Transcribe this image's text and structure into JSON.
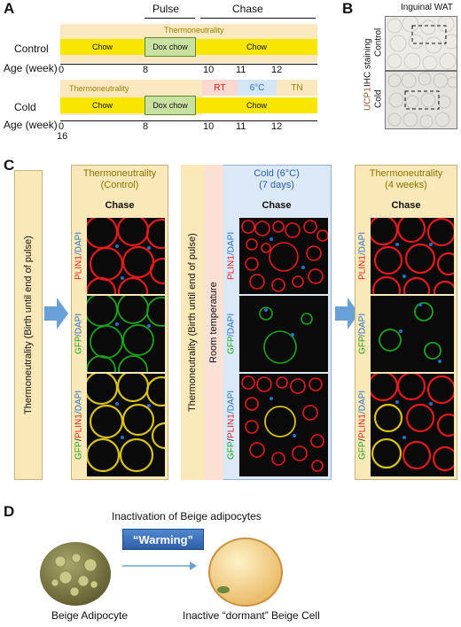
{
  "panel_a": {
    "label": "A",
    "pulse": "Pulse",
    "chase": "Chase",
    "control": {
      "name": "Control",
      "band": "Thermoneutrality",
      "chow1": "Chow",
      "dox": "Dox chow",
      "chow2": "Chow"
    },
    "cold": {
      "name": "Cold",
      "band": "Thermoneutrality",
      "rt": "RT",
      "six": "6°C",
      "tn": "TN",
      "chow1": "Chow",
      "dox": "Dox chow",
      "chow2": "Chow"
    },
    "age_label": "Age (week)",
    "ticks": [
      "0",
      "8",
      "10",
      "11",
      "12"
    ],
    "ticks_under": "16"
  },
  "panel_b": {
    "label": "B",
    "title": "Inguinal WAT",
    "ucp1": "UCP1",
    "ihc": " IHC staining",
    "control": "Control",
    "cold": "Cold"
  },
  "panel_c": {
    "label": "C",
    "side_tn": "Thermoneutrality (Birth until end of pulse)",
    "side_tn2": "Thermoneutrality (Birth until end of pulse)",
    "room": "Room temperature",
    "g1_title1": "Thermoneutrality",
    "g1_title2": "(Control)",
    "g2_title1": "Cold (6°C)",
    "g2_title2": "(7 days)",
    "g3_title1": "Thermoneutrality",
    "g3_title2": "(4 weeks)",
    "chase": "Chase",
    "rows": {
      "plin1": "PLIN1",
      "gfp": "GFP",
      "dapi": "/DAPI",
      "slash": "/"
    }
  },
  "panel_d": {
    "label": "D",
    "title": "Inactivation of Beige adipocytes",
    "warming": "“Warming”",
    "left_cell": "Beige Adipocyte",
    "right_cell": "Inactive “dormant” Beige Cell"
  },
  "colors": {
    "yellow": "#f7e600",
    "band": "#fbe7c0",
    "green_box": "#c8e0a0",
    "rt_pink": "#f8d8d0",
    "six_blue": "#d4e6f4",
    "panel_cream": "#fbe8b8",
    "panel_blue": "#dbe8f6",
    "arrow_blue": "#6aa0d8",
    "plin1_red": "#e41a1c",
    "gfp_green": "#1aa61a",
    "dapi_blue": "#2a6fc9",
    "title_olive": "#8a7400"
  }
}
